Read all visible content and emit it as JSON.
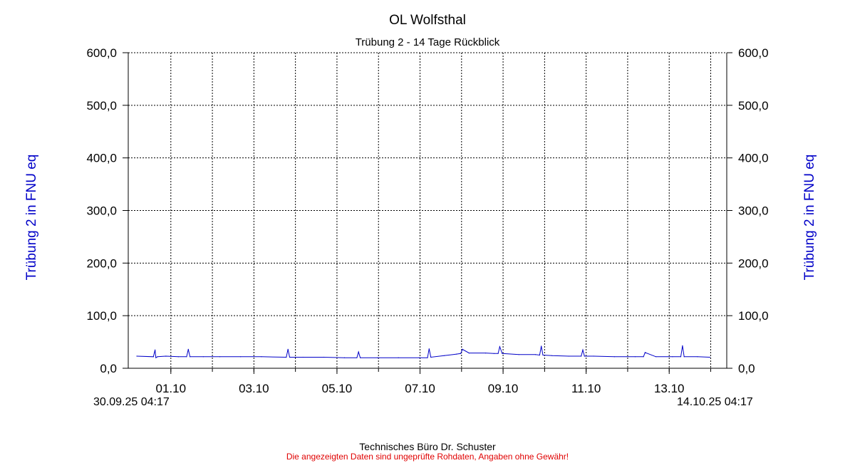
{
  "header": {
    "title": "OL Wolfsthal",
    "subtitle": "Trübung 2 - 14 Tage Rückblick"
  },
  "axes": {
    "ylabel_left": "Trübung 2 in FNU eq",
    "ylabel_right": "Trübung 2 in FNU eq",
    "start_label": "30.09.25 04:17",
    "end_label": "14.10.25 04:17"
  },
  "footer": {
    "credit": "Technisches Büro Dr. Schuster",
    "disclaimer": "Die angezeigten Daten sind ungeprüfte Rohdaten, Angaben ohne Gewähr!"
  },
  "colors": {
    "series": "#0000c8",
    "axis_title": "#0000c8",
    "disclaimer": "#e00000"
  },
  "chart_data": {
    "type": "line",
    "title": "OL Wolfsthal",
    "subtitle": "Trübung 2 - 14 Tage Rückblick",
    "ylabel": "Trübung 2 in FNU eq",
    "ylim": [
      0,
      600
    ],
    "y_ticks": [
      "0,0",
      "100,0",
      "200,0",
      "300,0",
      "400,0",
      "500,0",
      "600,0"
    ],
    "y_tick_values": [
      0,
      100,
      200,
      300,
      400,
      500,
      600
    ],
    "xlim_days": [
      0,
      14
    ],
    "x_ticks": [
      "01.10",
      "03.10",
      "05.10",
      "07.10",
      "09.10",
      "11.10",
      "13.10"
    ],
    "x_tick_positions_days": [
      0.82,
      2.82,
      4.82,
      6.82,
      8.82,
      10.82,
      12.82
    ],
    "x_start": "30.09.25 04:17",
    "x_end": "14.10.25 04:17",
    "grid": true,
    "series": [
      {
        "values_days": [
          0,
          0.4,
          0.44,
          0.46,
          0.5,
          0.7,
          1.0,
          1.2,
          1.24,
          1.28,
          1.6,
          2.0,
          2.5,
          3.0,
          3.6,
          3.64,
          3.68,
          4.0,
          4.5,
          5.0,
          5.3,
          5.34,
          5.38,
          5.8,
          6.3,
          6.8,
          7.0,
          7.04,
          7.08,
          7.4,
          7.7,
          7.8,
          7.84,
          8.0,
          8.4,
          8.6,
          8.7,
          8.74,
          8.8,
          9.2,
          9.6,
          9.7,
          9.74,
          9.78,
          10.0,
          10.4,
          10.7,
          10.74,
          10.78,
          11.0,
          11.5,
          12.0,
          12.2,
          12.24,
          12.5,
          12.9,
          13.1,
          13.14,
          13.18,
          13.5,
          13.8
        ],
        "values": [
          23,
          22,
          35,
          20,
          22,
          23,
          22,
          22,
          36,
          22,
          22,
          22,
          22,
          22,
          21,
          36,
          21,
          21,
          21,
          20,
          20,
          31,
          20,
          20,
          20,
          20,
          20,
          37,
          21,
          24,
          27,
          28,
          36,
          29,
          29,
          28,
          28,
          41,
          28,
          26,
          26,
          25,
          42,
          25,
          24,
          23,
          23,
          35,
          23,
          23,
          22,
          22,
          22,
          30,
          22,
          22,
          22,
          43,
          22,
          22,
          21
        ]
      }
    ]
  }
}
